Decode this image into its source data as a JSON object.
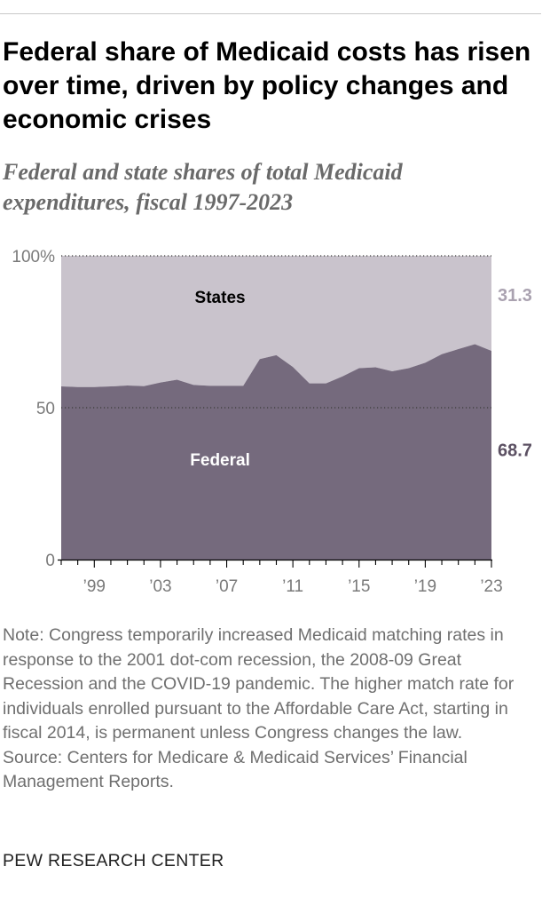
{
  "header": {
    "title": "Federal share of Medicaid costs has risen over time, driven by policy changes and economic crises",
    "subtitle": "Federal and state shares of total Medicaid expenditures, fiscal 1997-2023"
  },
  "colors": {
    "federal": "#756a7d",
    "states": "#c9c3cc",
    "federal_label": "#5c5163",
    "states_label": "#aaa2b0"
  },
  "chart_data": {
    "type": "area",
    "stacked": true,
    "x": [
      1997,
      1998,
      1999,
      2000,
      2001,
      2002,
      2003,
      2004,
      2005,
      2006,
      2007,
      2008,
      2009,
      2010,
      2011,
      2012,
      2013,
      2014,
      2015,
      2016,
      2017,
      2018,
      2019,
      2020,
      2021,
      2022,
      2023
    ],
    "series": [
      {
        "name": "Federal",
        "values": [
          57.0,
          56.8,
          56.8,
          57.0,
          57.3,
          57.1,
          58.3,
          59.2,
          57.5,
          57.2,
          57.2,
          57.2,
          66.0,
          67.3,
          63.4,
          58.0,
          58.0,
          60.3,
          63.0,
          63.3,
          62.0,
          63.0,
          64.8,
          67.6,
          69.3,
          70.9,
          68.7
        ]
      },
      {
        "name": "States",
        "values": [
          43.0,
          43.2,
          43.2,
          43.0,
          42.7,
          42.9,
          41.7,
          40.8,
          42.5,
          42.8,
          42.8,
          42.8,
          34.0,
          32.7,
          36.6,
          42.0,
          42.0,
          39.7,
          37.0,
          36.7,
          38.0,
          37.0,
          35.2,
          32.4,
          30.7,
          29.1,
          31.3
        ]
      }
    ],
    "area_labels": {
      "states": "States",
      "federal": "Federal"
    },
    "end_labels": {
      "states": "31.3",
      "federal": "68.7"
    },
    "ylim": [
      0,
      100
    ],
    "y_ticks": [
      {
        "value": 0,
        "label": "0"
      },
      {
        "value": 50,
        "label": "50"
      },
      {
        "value": 100,
        "label": "100%"
      }
    ],
    "x_ticks": [
      {
        "value": 1999,
        "label": "’99"
      },
      {
        "value": 2003,
        "label": "’03"
      },
      {
        "value": 2007,
        "label": "’07"
      },
      {
        "value": 2011,
        "label": "’11"
      },
      {
        "value": 2015,
        "label": "’15"
      },
      {
        "value": 2019,
        "label": "’19"
      },
      {
        "value": 2023,
        "label": "’23"
      }
    ],
    "grid": "dotted",
    "xlabel": "",
    "ylabel": ""
  },
  "notes": {
    "note": "Note: Congress temporarily increased Medicaid matching rates in response to the 2001 dot-com recession, the 2008-09 Great Recession and the COVID-19 pandemic. The higher match rate for individuals enrolled pursuant to the Affordable Care Act, starting in fiscal 2014, is permanent unless Congress changes the law.",
    "source": "Source: Centers for Medicare & Medicaid Services’ Financial Management Reports."
  },
  "footer": {
    "brand": "PEW RESEARCH CENTER"
  }
}
